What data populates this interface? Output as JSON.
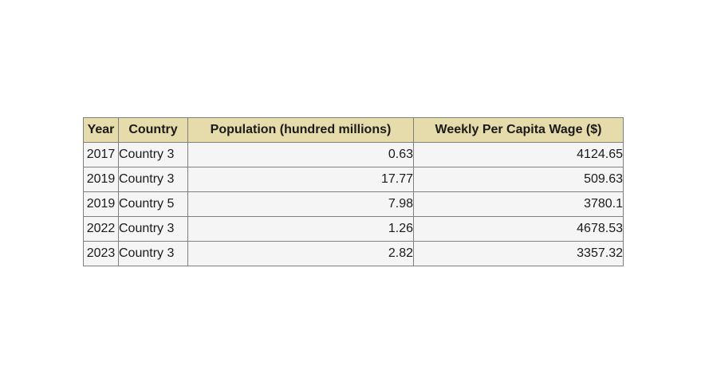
{
  "chart_data": {
    "type": "table",
    "columns": [
      "Year",
      "Country",
      "Population (hundred millions)",
      "Weekly Per Capita Wage ($)"
    ],
    "rows": [
      [
        "2017",
        "Country 3",
        "0.63",
        "4124.65"
      ],
      [
        "2019",
        "Country 3",
        "17.77",
        "509.63"
      ],
      [
        "2019",
        "Country 5",
        "7.98",
        "3780.1"
      ],
      [
        "2022",
        "Country 3",
        "1.26",
        "4678.53"
      ],
      [
        "2023",
        "Country 3",
        "2.82",
        "3357.32"
      ]
    ],
    "colors": {
      "header_background": "#e6dbab",
      "cell_background": "#f5f5f5",
      "border": "#7f7f7f"
    }
  }
}
